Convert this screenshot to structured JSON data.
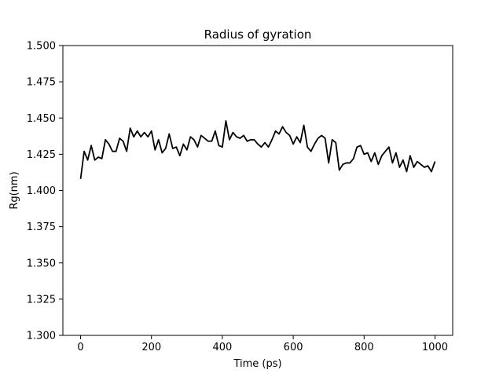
{
  "chart_data": {
    "type": "line",
    "title": "Radius of gyration",
    "xlabel": "Time (ps)",
    "ylabel": "Rg(nm)",
    "xlim": [
      -50,
      1050
    ],
    "ylim": [
      1.3,
      1.5
    ],
    "x_ticks": [
      0,
      200,
      400,
      600,
      800,
      1000
    ],
    "x_tick_labels": [
      "0",
      "200",
      "400",
      "600",
      "800",
      "1000"
    ],
    "y_ticks": [
      1.3,
      1.325,
      1.35,
      1.375,
      1.4,
      1.425,
      1.45,
      1.475,
      1.5
    ],
    "y_tick_labels": [
      "1.300",
      "1.325",
      "1.350",
      "1.375",
      "1.400",
      "1.425",
      "1.450",
      "1.475",
      "1.500"
    ],
    "grid": false,
    "series": [
      {
        "color": "#000000",
        "x": [
          0,
          10,
          20,
          30,
          40,
          50,
          60,
          70,
          80,
          90,
          100,
          110,
          120,
          130,
          140,
          150,
          160,
          170,
          180,
          190,
          200,
          210,
          220,
          230,
          240,
          250,
          260,
          270,
          280,
          290,
          300,
          310,
          320,
          330,
          340,
          350,
          360,
          370,
          380,
          390,
          400,
          410,
          420,
          430,
          440,
          450,
          460,
          470,
          480,
          490,
          500,
          510,
          520,
          530,
          540,
          550,
          560,
          570,
          580,
          590,
          600,
          610,
          620,
          630,
          640,
          650,
          660,
          670,
          680,
          690,
          700,
          710,
          720,
          730,
          740,
          750,
          760,
          770,
          780,
          790,
          800,
          810,
          820,
          830,
          840,
          850,
          860,
          870,
          880,
          890,
          900,
          910,
          920,
          930,
          940,
          950,
          960,
          970,
          980,
          990,
          1000
        ],
        "y": [
          1.408,
          1.427,
          1.421,
          1.431,
          1.421,
          1.423,
          1.422,
          1.435,
          1.432,
          1.427,
          1.427,
          1.436,
          1.434,
          1.427,
          1.443,
          1.437,
          1.441,
          1.437,
          1.44,
          1.437,
          1.441,
          1.428,
          1.435,
          1.426,
          1.429,
          1.439,
          1.429,
          1.43,
          1.424,
          1.432,
          1.428,
          1.437,
          1.435,
          1.43,
          1.438,
          1.436,
          1.434,
          1.434,
          1.441,
          1.431,
          1.43,
          1.448,
          1.435,
          1.44,
          1.437,
          1.436,
          1.438,
          1.434,
          1.435,
          1.435,
          1.432,
          1.43,
          1.433,
          1.43,
          1.435,
          1.441,
          1.439,
          1.444,
          1.44,
          1.438,
          1.432,
          1.437,
          1.433,
          1.445,
          1.43,
          1.427,
          1.432,
          1.436,
          1.438,
          1.436,
          1.419,
          1.435,
          1.433,
          1.414,
          1.418,
          1.419,
          1.419,
          1.422,
          1.43,
          1.431,
          1.425,
          1.426,
          1.42,
          1.426,
          1.418,
          1.424,
          1.427,
          1.43,
          1.419,
          1.426,
          1.416,
          1.421,
          1.413,
          1.424,
          1.416,
          1.42,
          1.418,
          1.416,
          1.417,
          1.413,
          1.42
        ]
      }
    ]
  }
}
